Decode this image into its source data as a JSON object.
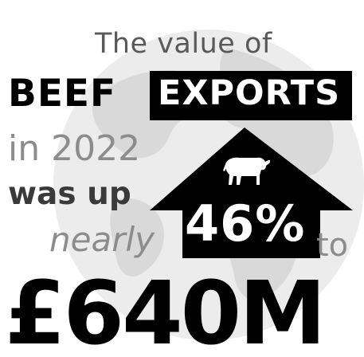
{
  "headline": {
    "line1": "The value of",
    "beef": "BEEF",
    "exports": "EXPORTS",
    "year_line": "in 2022",
    "was_up": "was up",
    "nearly": "nearly",
    "percent": "46%",
    "to": "to",
    "amount": "£640M"
  },
  "icons": {
    "arrow": "up-arrow-icon",
    "cow": "cow-icon",
    "background": "globe-icon"
  },
  "colors": {
    "text_dark": "#000000",
    "text_mid": "#595959",
    "text_light": "#8c8c8c",
    "globe": "#e6e6e6",
    "accent_box": "#000000"
  }
}
